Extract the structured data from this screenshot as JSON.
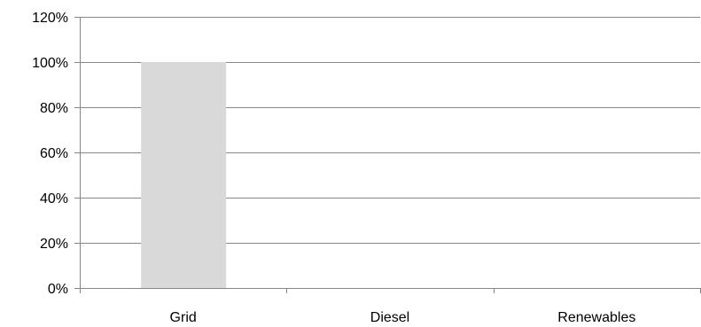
{
  "chart_data": {
    "type": "bar",
    "categories": [
      "Grid",
      "Diesel",
      "Renewables"
    ],
    "values": [
      100,
      0,
      0
    ],
    "ylim": [
      0,
      120
    ],
    "yticks": [
      0,
      20,
      40,
      60,
      80,
      100,
      120
    ],
    "ytick_labels": [
      "0%",
      "20%",
      "40%",
      "60%",
      "80%",
      "100%",
      "120%"
    ],
    "title": "",
    "xlabel": "",
    "ylabel": "",
    "grid": true,
    "legend": "none",
    "bar_color": "#d9d9d9",
    "grid_color": "#868686"
  }
}
